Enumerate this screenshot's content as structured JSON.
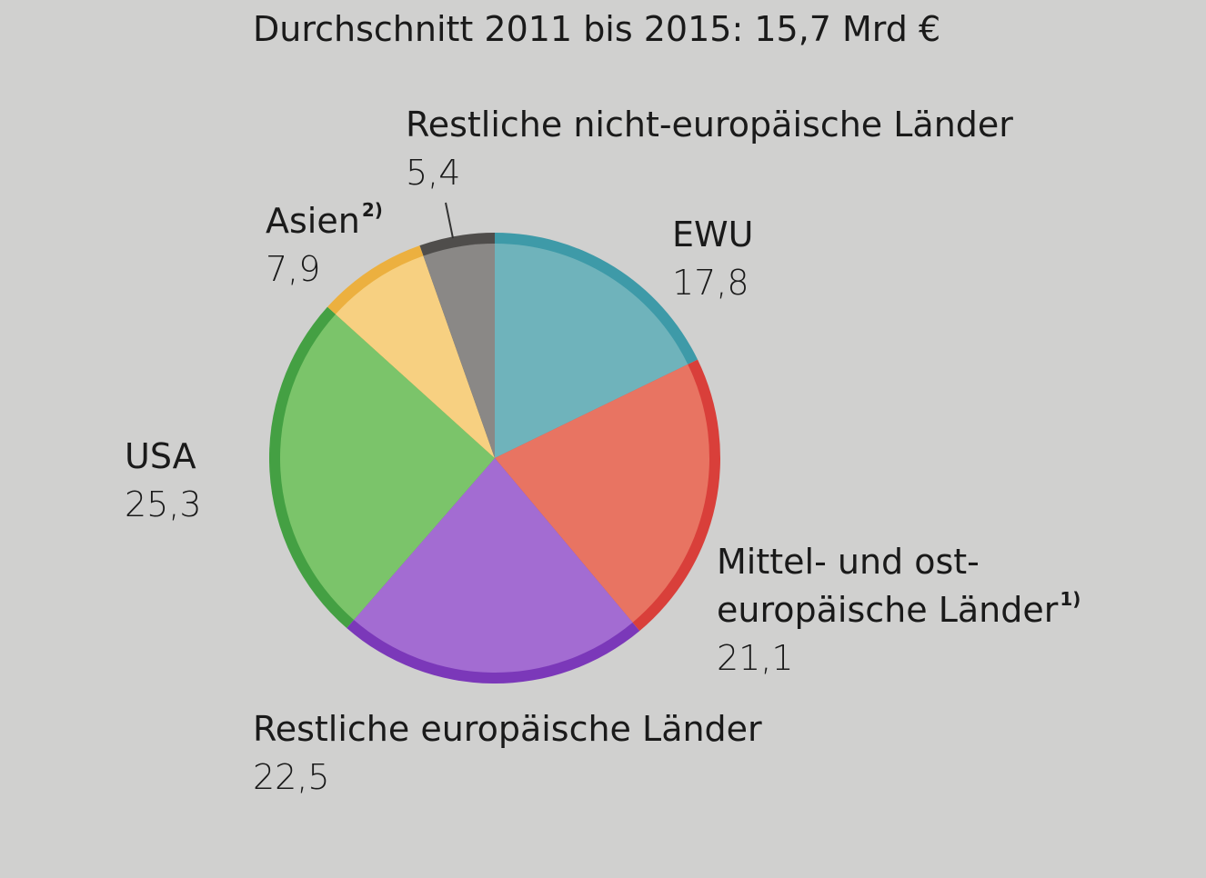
{
  "chart_data": {
    "type": "pie",
    "title": "Durchschnitt 2011 bis 2015: 15,7 Mrd €",
    "start_angle_deg": 0,
    "direction": "clockwise",
    "slices": [
      {
        "name": "EWU",
        "footnote": "",
        "value": 17.8,
        "value_label": "17,8",
        "fill": "#6fb3bb",
        "edge": "#3e9aa8"
      },
      {
        "name": "Mittel- und ost-\neuropäische Länder",
        "name_lines": [
          "Mittel- und ost-",
          "europäische Länder"
        ],
        "footnote": "1)",
        "value": 21.1,
        "value_label": "21,1",
        "fill": "#e87462",
        "edge": "#d93f3a"
      },
      {
        "name": "Restliche europäische Länder",
        "footnote": "",
        "value": 22.5,
        "value_label": "22,5",
        "fill": "#a36cd2",
        "edge": "#7b38b9"
      },
      {
        "name": "USA",
        "footnote": "",
        "value": 25.3,
        "value_label": "25,3",
        "fill": "#7bc46a",
        "edge": "#44a043"
      },
      {
        "name": "Asien",
        "footnote": "2)",
        "value": 7.9,
        "value_label": "7,9",
        "fill": "#f7d081",
        "edge": "#ecb03f"
      },
      {
        "name": "Restliche nicht-europäische Länder",
        "footnote": "",
        "value": 5.4,
        "value_label": "5,4",
        "fill": "#8a8886",
        "edge": "#4f4d4b"
      }
    ]
  }
}
